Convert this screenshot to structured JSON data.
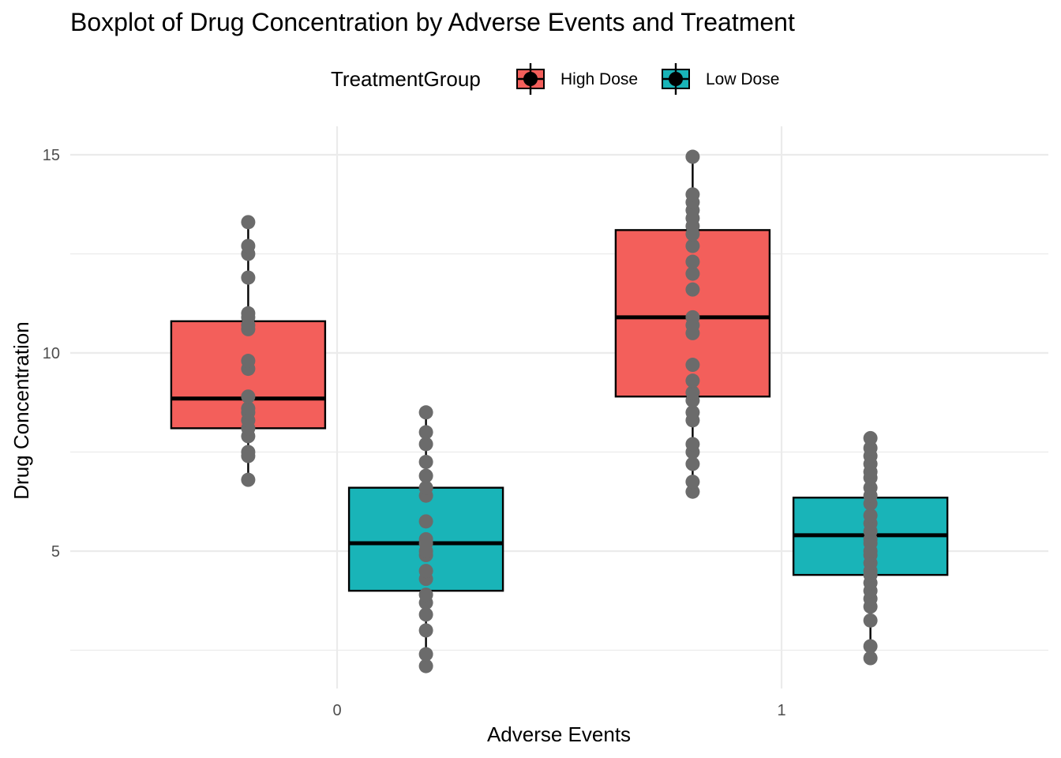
{
  "chart_data": {
    "type": "boxplot",
    "title": "Boxplot of Drug Concentration by Adverse Events and Treatment",
    "xlabel": "Adverse Events",
    "ylabel": "Drug Concentration",
    "categories": [
      "0",
      "1"
    ],
    "ylim": [
      2.0,
      16.0
    ],
    "y_ticks": [
      5,
      10,
      15
    ],
    "grid": true,
    "legend": {
      "title": "TreatmentGroup",
      "position": "top",
      "entries": [
        "High Dose",
        "Low Dose"
      ]
    },
    "point_color": "#6b6b6b",
    "series": [
      {
        "name": "High Dose",
        "color": "#f35f5b",
        "boxes": [
          {
            "category": "0",
            "whisker_low": 6.8,
            "q1": 8.1,
            "median": 8.85,
            "q3": 10.8,
            "whisker_high": 13.3,
            "points": [
              6.8,
              7.4,
              7.5,
              7.9,
              8.1,
              8.3,
              8.5,
              8.6,
              8.9,
              9.6,
              9.8,
              10.6,
              10.7,
              10.9,
              11.0,
              11.9,
              12.5,
              12.7,
              13.3
            ]
          },
          {
            "category": "1",
            "whisker_low": 6.5,
            "q1": 8.9,
            "median": 10.9,
            "q3": 13.1,
            "whisker_high": 14.95,
            "points": [
              6.5,
              6.75,
              7.2,
              7.5,
              7.7,
              8.3,
              8.5,
              8.8,
              9.0,
              9.3,
              9.7,
              10.5,
              10.7,
              10.9,
              11.6,
              12.0,
              12.3,
              12.7,
              13.0,
              13.2,
              13.4,
              13.6,
              13.8,
              14.0,
              14.95
            ]
          }
        ]
      },
      {
        "name": "Low Dose",
        "color": "#19b4b8",
        "boxes": [
          {
            "category": "0",
            "whisker_low": 2.1,
            "q1": 4.0,
            "median": 5.2,
            "q3": 6.6,
            "whisker_high": 8.5,
            "points": [
              2.1,
              2.4,
              3.0,
              3.4,
              3.7,
              3.9,
              4.3,
              4.5,
              4.9,
              5.0,
              5.2,
              5.3,
              5.75,
              6.4,
              6.6,
              6.9,
              7.25,
              7.7,
              8.0,
              8.5
            ]
          },
          {
            "category": "1",
            "whisker_low": 2.3,
            "q1": 4.4,
            "median": 5.4,
            "q3": 6.35,
            "whisker_high": 7.85,
            "points": [
              2.3,
              2.6,
              3.25,
              3.6,
              3.8,
              4.0,
              4.2,
              4.4,
              4.5,
              4.7,
              4.9,
              5.0,
              5.2,
              5.3,
              5.5,
              5.7,
              5.9,
              6.2,
              6.4,
              6.6,
              6.85,
              7.0,
              7.2,
              7.4,
              7.6,
              7.85
            ]
          }
        ]
      }
    ]
  }
}
